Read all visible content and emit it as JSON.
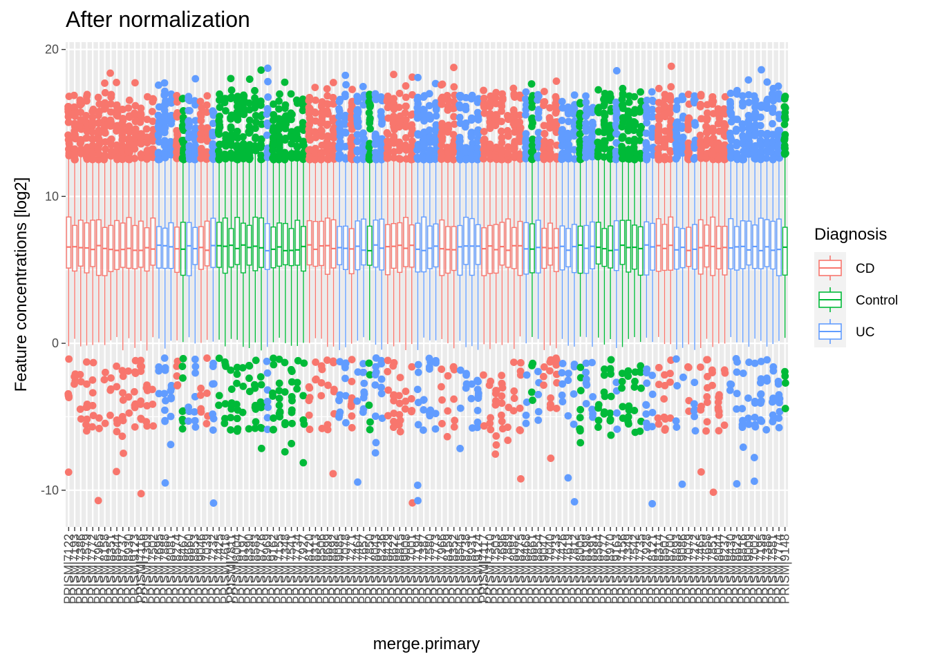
{
  "chart_data": {
    "type": "boxplot",
    "title": "After normalization",
    "xlabel": "merge.primary",
    "ylabel": "Feature concentrations [log2]",
    "ylim": [
      -12.5,
      20.5
    ],
    "y_ticks": [
      -10,
      0,
      10,
      20
    ],
    "grid": true,
    "sample_count": 120,
    "sample_label_prefix": "PRISM|",
    "first_sample_label": "PRISM|7122",
    "last_sample_label": "PRISM|9148",
    "typical_box": {
      "whisker_low": 0,
      "q1": 5,
      "median": 6.5,
      "q3": 8.2,
      "whisker_high": 13
    },
    "typical_ranges": {
      "high_outliers": [
        12.5,
        19.0
      ],
      "low_outliers": [
        -11.0,
        0.3
      ]
    },
    "group_sequence": [
      "CD",
      "CD",
      "CD",
      "CD",
      "CD",
      "CD",
      "CD",
      "CD",
      "CD",
      "CD",
      "CD",
      "CD",
      "CD",
      "CD",
      "CD",
      "UC",
      "UC",
      "UC",
      "CD",
      "Control",
      "UC",
      "UC",
      "CD",
      "CD",
      "UC",
      "Control",
      "Control",
      "Control",
      "Control",
      "Control",
      "Control",
      "Control",
      "Control",
      "UC",
      "Control",
      "Control",
      "Control",
      "Control",
      "Control",
      "Control",
      "CD",
      "CD",
      "CD",
      "CD",
      "CD",
      "UC",
      "UC",
      "CD",
      "UC",
      "UC",
      "Control",
      "UC",
      "UC",
      "CD",
      "CD",
      "CD",
      "CD",
      "CD",
      "UC",
      "UC",
      "UC",
      "UC",
      "CD",
      "CD",
      "CD",
      "UC",
      "UC",
      "UC",
      "UC",
      "CD",
      "CD",
      "CD",
      "CD",
      "CD",
      "CD",
      "CD",
      "UC",
      "Control",
      "UC",
      "CD",
      "CD",
      "CD",
      "UC",
      "UC",
      "UC",
      "Control",
      "UC",
      "UC",
      "Control",
      "Control",
      "Control",
      "UC",
      "Control",
      "Control",
      "Control",
      "Control",
      "UC",
      "UC",
      "CD",
      "CD",
      "CD",
      "UC",
      "UC",
      "CD",
      "UC",
      "CD",
      "CD",
      "CD",
      "CD",
      "CD",
      "UC",
      "UC",
      "UC",
      "UC",
      "UC",
      "UC",
      "UC",
      "UC",
      "UC",
      "Control"
    ],
    "legend": {
      "title": "Diagnosis",
      "position": "right",
      "entries": [
        {
          "label": "CD",
          "color": "#F8766D"
        },
        {
          "label": "Control",
          "color": "#00BA38"
        },
        {
          "label": "UC",
          "color": "#619CFF"
        }
      ]
    },
    "colors": {
      "panel_background": "#EBEBEB",
      "grid_major": "#FFFFFF",
      "tick_text": "#4D4D4D"
    }
  }
}
